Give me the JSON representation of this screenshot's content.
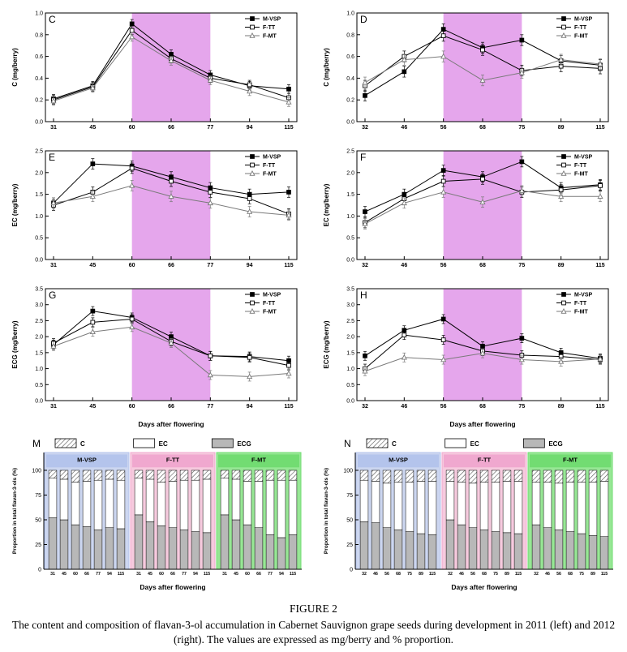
{
  "figure": {
    "caption_title": "FIGURE 2",
    "caption_text": "The content and composition of flavan-3-ol accumulation in Cabernet Sauvignon grape seeds during development in 2011 (left) and 2012 (right). The values are expressed as mg/berry and % proportion."
  },
  "colors": {
    "shade": "#e5a6ec",
    "bar_gray": "#b8b8b8",
    "series_gray": "#7a7a7a",
    "group_bg": [
      "#ccd6f0",
      "#f6cade",
      "#97e795"
    ],
    "group_band": [
      "#b4c4ec",
      "#f0a8cf",
      "#72dc72"
    ],
    "group_tick": [
      "#2b35c0",
      "#d023a8",
      "#1d9e1d"
    ]
  },
  "chart_data": [
    {
      "id": "C",
      "type": "line",
      "panel": "C",
      "ylabel": "C (mg/berry)",
      "xlabel": "",
      "ylim": [
        0,
        1.0
      ],
      "yticks": [
        0.0,
        0.2,
        0.4,
        0.6,
        0.8,
        1.0
      ],
      "x": [
        31,
        45,
        60,
        66,
        77,
        94,
        115
      ],
      "shade": [
        60,
        77
      ],
      "legend_position": "top-right",
      "series": [
        {
          "name": "M-VSP",
          "marker": "square",
          "fill": "filled",
          "color": "#000000",
          "err": 0.04,
          "values": [
            0.21,
            0.33,
            0.9,
            0.62,
            0.43,
            0.33,
            0.3
          ]
        },
        {
          "name": "F-TT",
          "marker": "square",
          "fill": "open",
          "color": "#000000",
          "err": 0.04,
          "values": [
            0.2,
            0.32,
            0.84,
            0.58,
            0.4,
            0.34,
            0.22
          ]
        },
        {
          "name": "F-MT",
          "marker": "triangle",
          "fill": "open",
          "color": "#7a7a7a",
          "err": 0.04,
          "values": [
            0.19,
            0.31,
            0.78,
            0.56,
            0.38,
            0.28,
            0.18
          ]
        }
      ]
    },
    {
      "id": "D",
      "type": "line",
      "panel": "D",
      "ylabel": "C (mg/berry)",
      "xlabel": "",
      "ylim": [
        0,
        1.0
      ],
      "yticks": [
        0.0,
        0.2,
        0.4,
        0.6,
        0.8,
        1.0
      ],
      "x": [
        32,
        46,
        56,
        68,
        75,
        89,
        115
      ],
      "shade": [
        56,
        75
      ],
      "legend_position": "top-right",
      "series": [
        {
          "name": "M-VSP",
          "marker": "square",
          "fill": "filled",
          "color": "#000000",
          "err": 0.05,
          "values": [
            0.24,
            0.46,
            0.85,
            0.68,
            0.75,
            0.56,
            0.52
          ]
        },
        {
          "name": "F-TT",
          "marker": "square",
          "fill": "open",
          "color": "#000000",
          "err": 0.05,
          "values": [
            0.33,
            0.6,
            0.79,
            0.66,
            0.47,
            0.51,
            0.49
          ]
        },
        {
          "name": "F-MT",
          "marker": "triangle",
          "fill": "open",
          "color": "#7a7a7a",
          "err": 0.05,
          "values": [
            0.36,
            0.57,
            0.6,
            0.38,
            0.45,
            0.57,
            0.53
          ]
        }
      ]
    },
    {
      "id": "E",
      "type": "line",
      "panel": "E",
      "ylabel": "EC (mg/berry)",
      "xlabel": "",
      "ylim": [
        0,
        2.5
      ],
      "yticks": [
        0.0,
        0.5,
        1.0,
        1.5,
        2.0,
        2.5
      ],
      "x": [
        31,
        45,
        60,
        66,
        77,
        94,
        115
      ],
      "shade": [
        60,
        77
      ],
      "legend_position": "top-right",
      "series": [
        {
          "name": "M-VSP",
          "marker": "square",
          "fill": "filled",
          "color": "#000000",
          "err": 0.12,
          "values": [
            1.3,
            2.2,
            2.15,
            1.9,
            1.65,
            1.5,
            1.55
          ]
        },
        {
          "name": "F-TT",
          "marker": "square",
          "fill": "open",
          "color": "#000000",
          "err": 0.12,
          "values": [
            1.25,
            1.55,
            2.1,
            1.8,
            1.55,
            1.4,
            1.05
          ]
        },
        {
          "name": "F-MT",
          "marker": "triangle",
          "fill": "open",
          "color": "#7a7a7a",
          "err": 0.12,
          "values": [
            1.3,
            1.45,
            1.7,
            1.45,
            1.3,
            1.1,
            1.02
          ]
        }
      ]
    },
    {
      "id": "F",
      "type": "line",
      "panel": "F",
      "ylabel": "EC (mg/berry)",
      "xlabel": "",
      "ylim": [
        0,
        2.5
      ],
      "yticks": [
        0.0,
        0.5,
        1.0,
        1.5,
        2.0,
        2.5
      ],
      "x": [
        32,
        46,
        56,
        68,
        75,
        89,
        115
      ],
      "shade": [
        56,
        75
      ],
      "legend_position": "top-right",
      "series": [
        {
          "name": "M-VSP",
          "marker": "square",
          "fill": "filled",
          "color": "#000000",
          "err": 0.12,
          "values": [
            1.1,
            1.5,
            2.05,
            1.9,
            2.25,
            1.65,
            1.72
          ]
        },
        {
          "name": "F-TT",
          "marker": "square",
          "fill": "open",
          "color": "#000000",
          "err": 0.12,
          "values": [
            0.85,
            1.4,
            1.8,
            1.85,
            1.55,
            1.6,
            1.7
          ]
        },
        {
          "name": "F-MT",
          "marker": "triangle",
          "fill": "open",
          "color": "#7a7a7a",
          "err": 0.12,
          "values": [
            0.82,
            1.3,
            1.55,
            1.32,
            1.58,
            1.45,
            1.45
          ]
        }
      ]
    },
    {
      "id": "G",
      "type": "line",
      "panel": "G",
      "ylabel": "ECG (mg/berry)",
      "xlabel": "Days after flowering",
      "ylim": [
        0,
        3.5
      ],
      "yticks": [
        0.0,
        0.5,
        1.0,
        1.5,
        2.0,
        2.5,
        3.0,
        3.5
      ],
      "x": [
        31,
        45,
        60,
        66,
        77,
        94,
        115
      ],
      "shade": [
        60,
        77
      ],
      "legend_position": "top-right",
      "series": [
        {
          "name": "M-VSP",
          "marker": "square",
          "fill": "filled",
          "color": "#000000",
          "err": 0.14,
          "values": [
            1.75,
            2.8,
            2.6,
            2.0,
            1.4,
            1.38,
            1.25
          ]
        },
        {
          "name": "F-TT",
          "marker": "square",
          "fill": "open",
          "color": "#000000",
          "err": 0.14,
          "values": [
            1.8,
            2.45,
            2.55,
            1.85,
            1.4,
            1.35,
            1.1
          ]
        },
        {
          "name": "F-MT",
          "marker": "triangle",
          "fill": "open",
          "color": "#7a7a7a",
          "err": 0.14,
          "values": [
            1.7,
            2.15,
            2.3,
            1.8,
            0.8,
            0.75,
            0.85
          ]
        }
      ]
    },
    {
      "id": "H",
      "type": "line",
      "panel": "H",
      "ylabel": "ECG (mg/berry)",
      "xlabel": "Days after flowering",
      "ylim": [
        0,
        3.5
      ],
      "yticks": [
        0.0,
        0.5,
        1.0,
        1.5,
        2.0,
        2.5,
        3.0,
        3.5
      ],
      "x": [
        32,
        46,
        56,
        68,
        75,
        89,
        115
      ],
      "shade": [
        56,
        75
      ],
      "legend_position": "top-right",
      "series": [
        {
          "name": "M-VSP",
          "marker": "square",
          "fill": "filled",
          "color": "#000000",
          "err": 0.14,
          "values": [
            1.4,
            2.2,
            2.55,
            1.7,
            1.95,
            1.5,
            1.32
          ]
        },
        {
          "name": "F-TT",
          "marker": "square",
          "fill": "open",
          "color": "#000000",
          "err": 0.14,
          "values": [
            1.0,
            2.05,
            1.9,
            1.55,
            1.42,
            1.38,
            1.28
          ]
        },
        {
          "name": "F-MT",
          "marker": "triangle",
          "fill": "open",
          "color": "#7a7a7a",
          "err": 0.14,
          "values": [
            0.92,
            1.35,
            1.28,
            1.48,
            1.28,
            1.22,
            1.3
          ]
        }
      ]
    },
    {
      "id": "M",
      "type": "stacked-bar",
      "panel": "M",
      "ylabel": "Proportion in total flavan-3-ols (%)",
      "xlabel": "Days after flowering",
      "yticks": [
        0,
        25,
        50,
        75,
        100
      ],
      "legend": [
        {
          "label": "C",
          "fill": "hatch"
        },
        {
          "label": "EC",
          "fill": "white"
        },
        {
          "label": "ECG",
          "fill": "gray"
        }
      ],
      "groups": [
        {
          "name": "M-VSP",
          "days": [
            31,
            45,
            60,
            66,
            77,
            94,
            115
          ],
          "ecg": [
            52,
            50,
            45,
            43,
            40,
            42,
            41
          ],
          "ec": [
            40,
            41,
            43,
            46,
            50,
            49,
            49
          ],
          "c": [
            8,
            9,
            12,
            11,
            10,
            9,
            10
          ]
        },
        {
          "name": "F-TT",
          "days": [
            31,
            45,
            60,
            66,
            77,
            94,
            115
          ],
          "ecg": [
            55,
            48,
            44,
            42,
            40,
            38,
            37
          ],
          "ec": [
            37,
            43,
            44,
            47,
            50,
            52,
            54
          ],
          "c": [
            8,
            9,
            12,
            11,
            10,
            10,
            9
          ]
        },
        {
          "name": "F-MT",
          "days": [
            31,
            45,
            60,
            66,
            77,
            94,
            115
          ],
          "ecg": [
            55,
            50,
            45,
            42,
            35,
            32,
            35
          ],
          "ec": [
            37,
            41,
            44,
            47,
            55,
            58,
            55
          ],
          "c": [
            8,
            9,
            11,
            11,
            10,
            10,
            10
          ]
        }
      ]
    },
    {
      "id": "N",
      "type": "stacked-bar",
      "panel": "N",
      "ylabel": "Proportion in total flavan-3-ols (%)",
      "xlabel": "Days after flowering",
      "yticks": [
        0,
        25,
        50,
        75,
        100
      ],
      "legend": [
        {
          "label": "C",
          "fill": "hatch"
        },
        {
          "label": "EC",
          "fill": "white"
        },
        {
          "label": "ECG",
          "fill": "gray"
        }
      ],
      "groups": [
        {
          "name": "M-VSP",
          "days": [
            32,
            46,
            56,
            68,
            75,
            89,
            115
          ],
          "ecg": [
            48,
            47,
            42,
            40,
            38,
            36,
            35
          ],
          "ec": [
            42,
            42,
            45,
            48,
            50,
            53,
            54
          ],
          "c": [
            10,
            11,
            13,
            12,
            12,
            11,
            11
          ]
        },
        {
          "name": "F-TT",
          "days": [
            32,
            46,
            56,
            68,
            75,
            89,
            115
          ],
          "ecg": [
            50,
            45,
            42,
            40,
            38,
            37,
            36
          ],
          "ec": [
            39,
            43,
            45,
            48,
            50,
            52,
            53
          ],
          "c": [
            11,
            12,
            13,
            12,
            12,
            11,
            11
          ]
        },
        {
          "name": "F-MT",
          "days": [
            32,
            46,
            56,
            68,
            75,
            89,
            115
          ],
          "ecg": [
            45,
            42,
            40,
            38,
            36,
            34,
            33
          ],
          "ec": [
            43,
            46,
            47,
            50,
            52,
            54,
            56
          ],
          "c": [
            12,
            12,
            13,
            12,
            12,
            12,
            11
          ]
        }
      ]
    }
  ]
}
